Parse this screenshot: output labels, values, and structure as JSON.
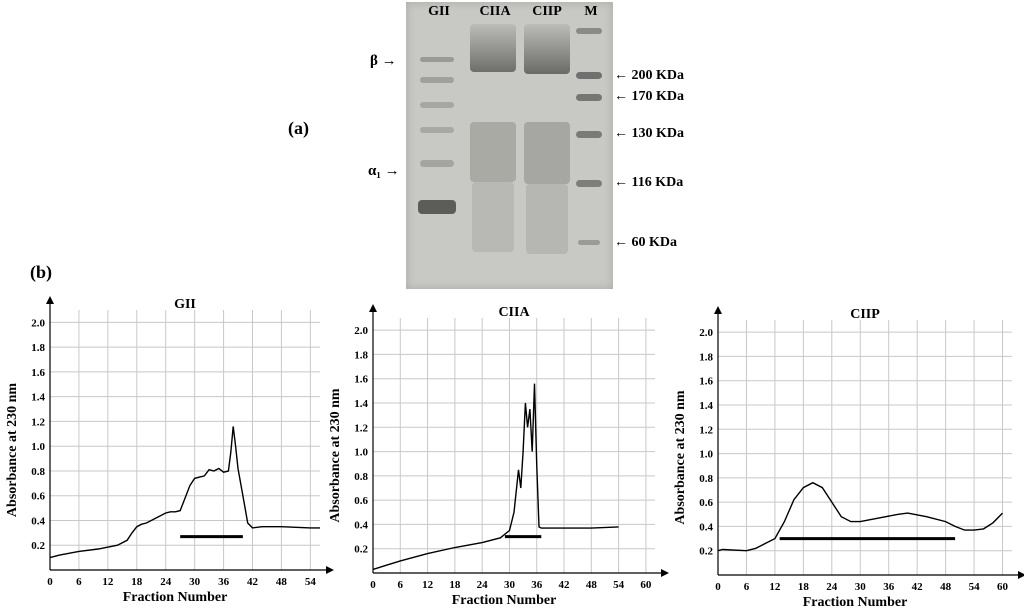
{
  "labels": {
    "a": "(a)",
    "b": "(b)"
  },
  "gel": {
    "lanes": [
      "GII",
      "CIIA",
      "CIIP",
      "M"
    ],
    "left_markers": [
      "β",
      "α₁"
    ],
    "right_markers": [
      "200 KDa",
      "170 KDa",
      "130 KDa",
      "116 KDa",
      "60 KDa"
    ],
    "arrow_left": "→",
    "arrow_right": "←"
  },
  "colors": {
    "gel_background": "#c8c8c4",
    "grid": "#c8c8c8",
    "line": "#000000"
  },
  "chart_data": [
    {
      "type": "line",
      "title": "GII",
      "xlabel": "Fraction Number",
      "ylabel": "Absorbance at 230 nm",
      "xlim": [
        0,
        56
      ],
      "ylim": [
        0,
        2.1
      ],
      "xticks": [
        0,
        6,
        12,
        18,
        24,
        30,
        36,
        42,
        48,
        54
      ],
      "yticks": [
        0.2,
        0.4,
        0.6,
        0.8,
        1.0,
        1.2,
        1.4,
        1.6,
        1.8,
        2.0
      ],
      "grid": true,
      "series": [
        {
          "x": [
            0,
            2,
            6,
            10,
            14,
            16,
            17,
            18,
            19,
            20,
            22,
            24,
            25,
            26,
            27,
            28,
            29,
            30,
            31,
            32,
            33,
            34,
            35,
            36,
            37,
            37.5,
            38,
            38.5,
            39,
            40,
            41,
            42,
            44,
            48,
            54,
            56
          ],
          "y": [
            0.1,
            0.12,
            0.15,
            0.17,
            0.2,
            0.24,
            0.3,
            0.35,
            0.37,
            0.38,
            0.42,
            0.46,
            0.47,
            0.47,
            0.48,
            0.58,
            0.68,
            0.74,
            0.75,
            0.76,
            0.81,
            0.8,
            0.82,
            0.79,
            0.8,
            0.95,
            1.16,
            1.0,
            0.82,
            0.6,
            0.38,
            0.34,
            0.35,
            0.35,
            0.34,
            0.34
          ]
        }
      ],
      "bar": {
        "x": [
          27,
          40
        ],
        "y": 0.27
      }
    },
    {
      "type": "line",
      "title": "CIIA",
      "xlabel": "Fraction Number",
      "ylabel": "Absorbance at 230 nm",
      "xlim": [
        0,
        62
      ],
      "ylim": [
        0,
        2.1
      ],
      "xticks": [
        0,
        6,
        12,
        18,
        24,
        30,
        36,
        42,
        48,
        54,
        60
      ],
      "yticks": [
        0.2,
        0.4,
        0.6,
        0.8,
        1.0,
        1.2,
        1.4,
        1.6,
        1.8,
        2.0
      ],
      "grid": true,
      "series": [
        {
          "x": [
            0,
            6,
            12,
            18,
            24,
            28,
            30,
            31,
            32,
            32.5,
            33,
            33.5,
            34,
            34.5,
            35,
            35.5,
            36,
            36.5,
            37,
            42,
            48,
            54
          ],
          "y": [
            0.03,
            0.1,
            0.16,
            0.21,
            0.25,
            0.29,
            0.35,
            0.5,
            0.85,
            0.7,
            1.0,
            1.4,
            1.2,
            1.35,
            1.0,
            1.56,
            0.9,
            0.38,
            0.37,
            0.37,
            0.37,
            0.38
          ]
        }
      ],
      "bar": {
        "x": [
          29,
          37
        ],
        "y": 0.3
      }
    },
    {
      "type": "line",
      "title": "CIIP",
      "xlabel": "Fraction Number",
      "ylabel": "Absorbance at 230 nm",
      "xlim": [
        0,
        62
      ],
      "ylim": [
        0,
        2.1
      ],
      "xticks": [
        0,
        6,
        12,
        18,
        24,
        30,
        36,
        42,
        48,
        54,
        60
      ],
      "yticks": [
        0.2,
        0.4,
        0.6,
        0.8,
        1.0,
        1.2,
        1.4,
        1.6,
        1.8,
        2.0
      ],
      "grid": true,
      "series": [
        {
          "x": [
            0,
            1,
            6,
            8,
            10,
            12,
            14,
            16,
            18,
            20,
            22,
            24,
            26,
            28,
            30,
            34,
            38,
            40,
            44,
            48,
            50,
            52,
            54,
            56,
            58,
            60
          ],
          "y": [
            0.2,
            0.21,
            0.2,
            0.22,
            0.26,
            0.3,
            0.44,
            0.62,
            0.72,
            0.76,
            0.72,
            0.6,
            0.48,
            0.44,
            0.44,
            0.47,
            0.5,
            0.51,
            0.48,
            0.44,
            0.4,
            0.37,
            0.37,
            0.38,
            0.43,
            0.51
          ]
        }
      ],
      "bar": {
        "x": [
          13,
          50
        ],
        "y": 0.3
      }
    }
  ]
}
